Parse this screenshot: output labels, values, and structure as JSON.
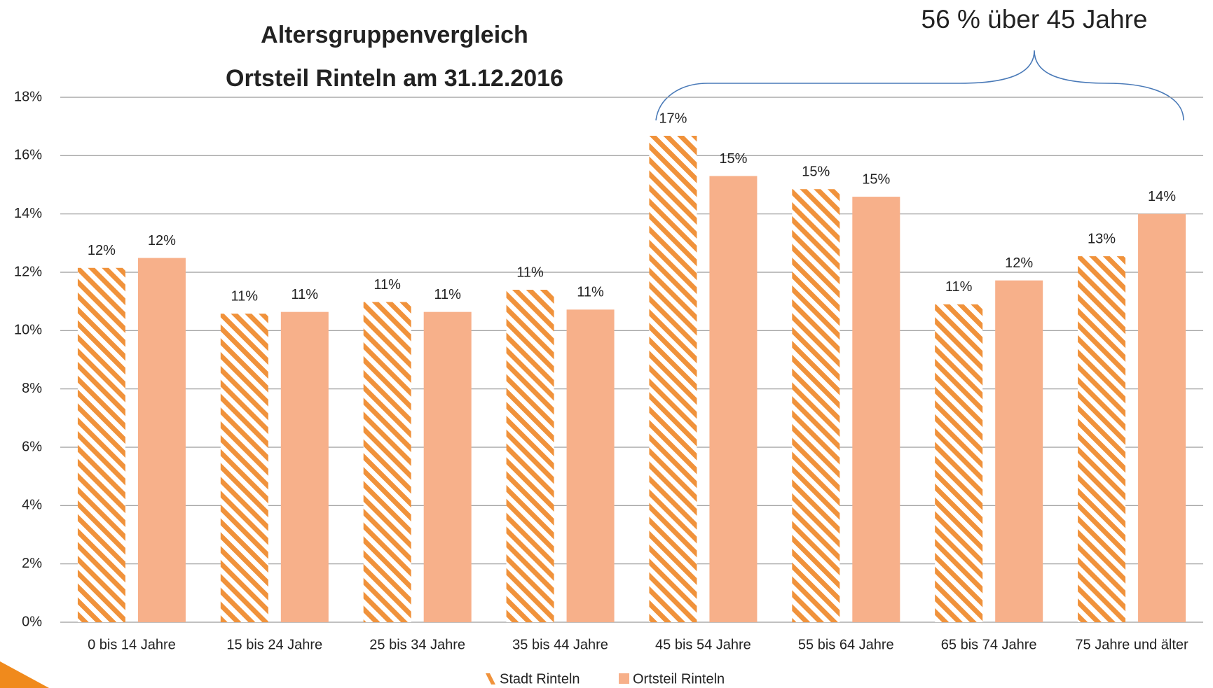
{
  "chart_data": {
    "type": "bar",
    "title": [
      "Altersgruppenvergleich",
      "Ortsteil Rinteln am 31.12.2016"
    ],
    "annotation": "56 % über 45 Jahre",
    "categories": [
      "0 bis 14 Jahre",
      "15 bis 24 Jahre",
      "25 bis 34 Jahre",
      "35 bis 44 Jahre",
      "45 bis 54 Jahre",
      "55 bis 64 Jahre",
      "65 bis 74 Jahre",
      "75 Jahre und älter"
    ],
    "series": [
      {
        "name": "Stadt Rinteln",
        "color": "#f0923b",
        "pattern": "hatch",
        "values": [
          12.15,
          10.58,
          10.98,
          11.4,
          16.68,
          14.85,
          10.9,
          12.55
        ],
        "value_labels": [
          "12%",
          "11%",
          "11%",
          "11%",
          "17%",
          "15%",
          "11%",
          "13%"
        ]
      },
      {
        "name": "Ortsteil Rinteln",
        "color": "#f7b08a",
        "pattern": "solid",
        "values": [
          12.49,
          10.64,
          10.64,
          10.72,
          15.3,
          14.59,
          11.72,
          14.0
        ],
        "value_labels": [
          "12%",
          "11%",
          "11%",
          "11%",
          "15%",
          "15%",
          "12%",
          "14%"
        ]
      }
    ],
    "ylim": [
      0,
      18
    ],
    "yticks": [
      {
        "value": 0,
        "label": "0%"
      },
      {
        "value": 2,
        "label": "2%"
      },
      {
        "value": 4,
        "label": "4%"
      },
      {
        "value": 6,
        "label": "6%"
      },
      {
        "value": 8,
        "label": "8%"
      },
      {
        "value": 10,
        "label": "10%"
      },
      {
        "value": 12,
        "label": "12%"
      },
      {
        "value": 14,
        "label": "14%"
      },
      {
        "value": 16,
        "label": "16%"
      },
      {
        "value": 18,
        "label": "18%"
      }
    ],
    "grid": true,
    "legend": "bottom"
  }
}
